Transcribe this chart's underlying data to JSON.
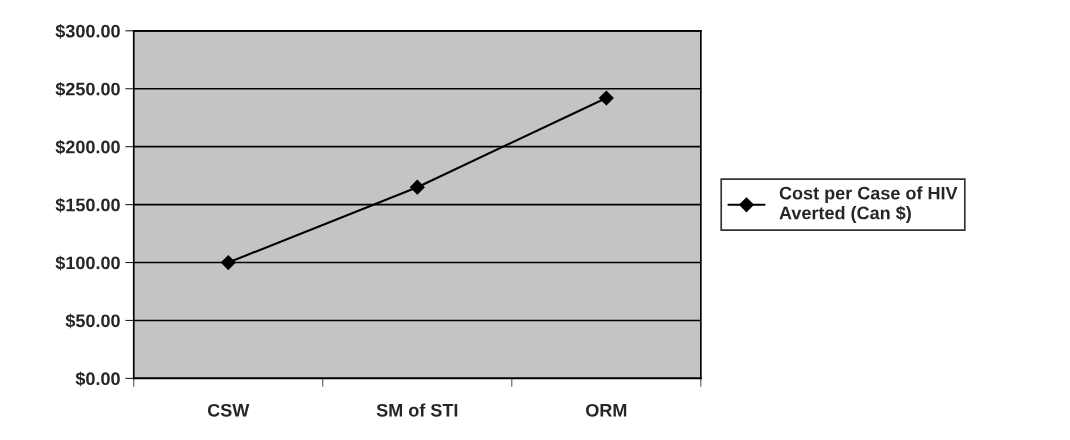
{
  "chart_data": {
    "type": "line",
    "categories": [
      "CSW",
      "SM of STI",
      "ORM"
    ],
    "series": [
      {
        "name": "Cost per Case of HIV\nAverted (Can $)",
        "color": "#000000",
        "values": [
          100,
          165,
          242
        ]
      }
    ],
    "ylim": [
      0,
      300
    ],
    "yticks": [
      {
        "value": 0,
        "label": "$0.00"
      },
      {
        "value": 50,
        "label": "$50.00"
      },
      {
        "value": 100,
        "label": "$100.00"
      },
      {
        "value": 150,
        "label": "$150.00"
      },
      {
        "value": 200,
        "label": "$200.00"
      },
      {
        "value": 250,
        "label": "$250.00"
      },
      {
        "value": 300,
        "label": "$300.00"
      }
    ],
    "grid": "y",
    "legend": "right",
    "marker": "diamond",
    "line_style": "solid"
  }
}
